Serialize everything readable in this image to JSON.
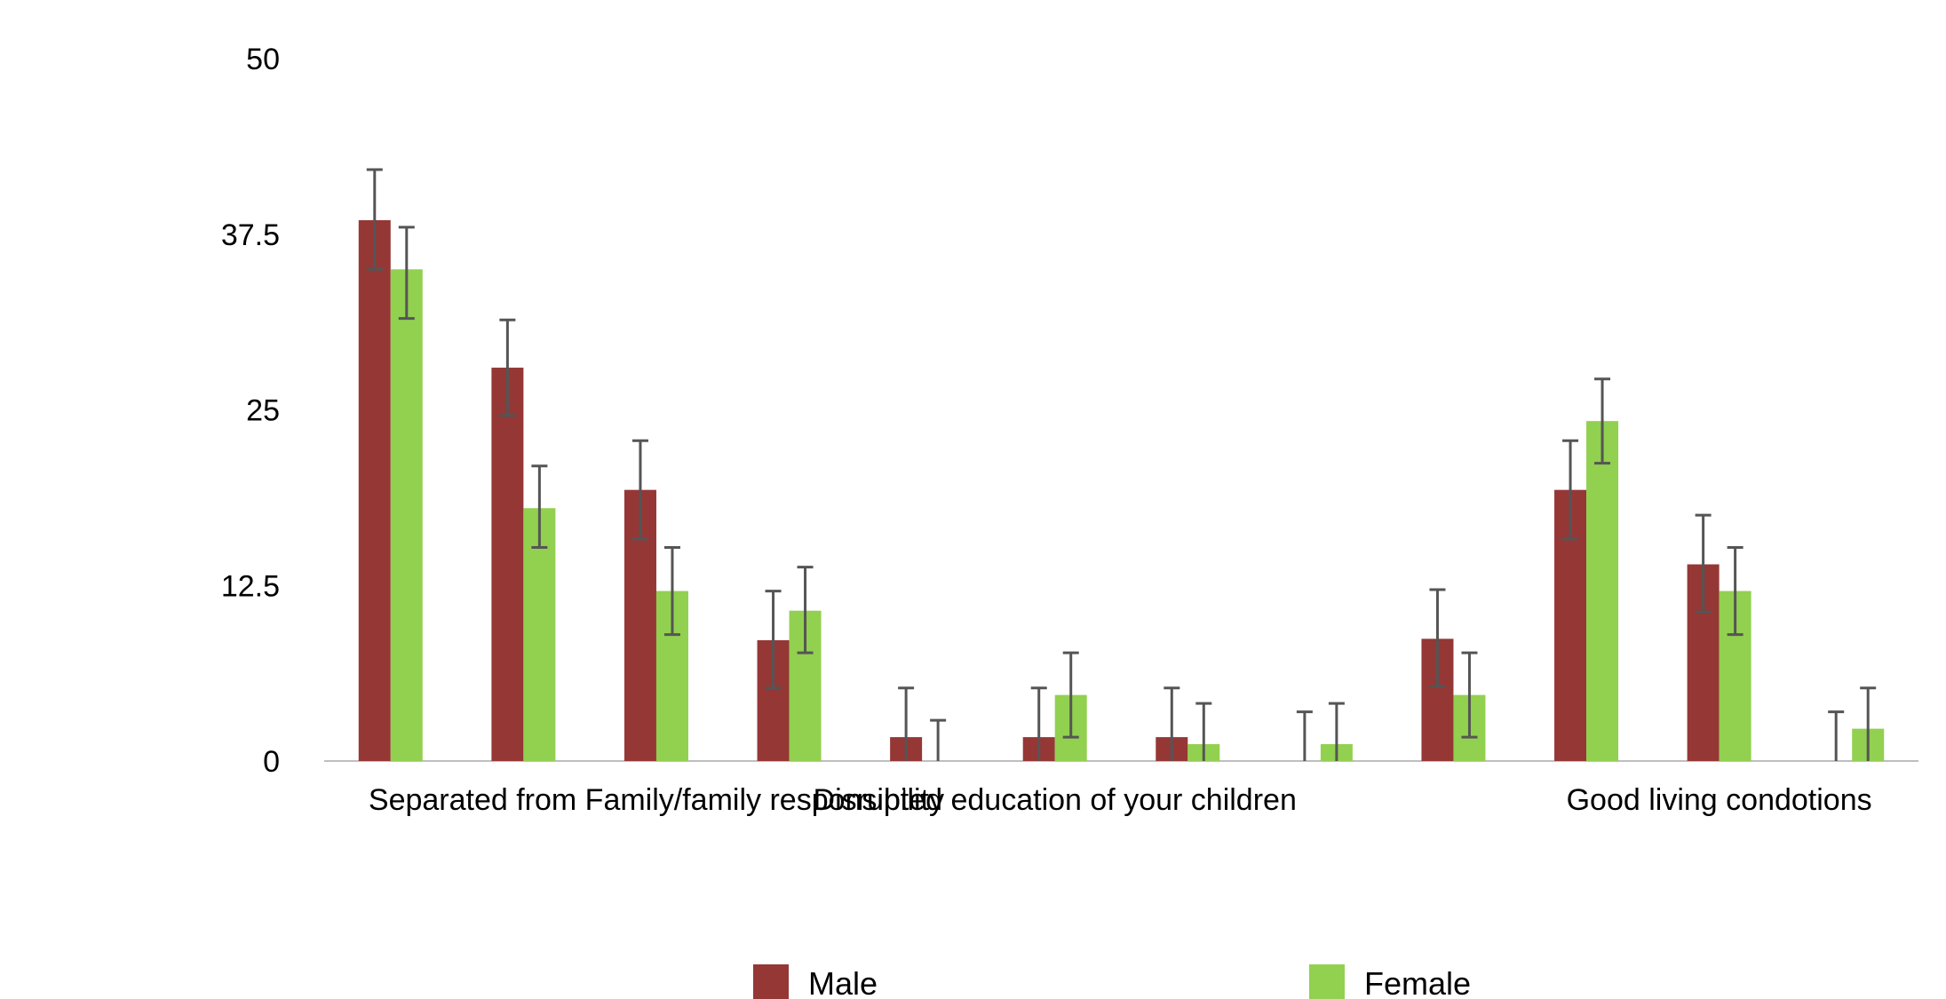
{
  "chart_data": {
    "type": "bar",
    "title": "",
    "xlabel": "",
    "ylabel": "",
    "ylim": [
      0,
      50
    ],
    "yticks": [
      0,
      12.5,
      25,
      37.5,
      50
    ],
    "ytick_labels": [
      "0",
      "12.5",
      "25",
      "37.5",
      "50"
    ],
    "grid": false,
    "legend_position": "bottom",
    "categories": [
      "",
      "",
      "",
      "",
      "",
      "",
      "",
      "",
      "",
      "",
      "",
      ""
    ],
    "printed_category_labels": [
      {
        "index": 2,
        "text": "Separated from Family/family responsibility"
      },
      {
        "index": 5,
        "text": "Disrupted education of your children"
      },
      {
        "index": 10,
        "text": "Good living condotions"
      }
    ],
    "series": [
      {
        "name": "Male",
        "color": "#953735",
        "values": [
          38.5,
          28,
          19.3,
          8.6,
          1.7,
          1.7,
          1.7,
          0,
          8.7,
          19.3,
          14,
          0
        ],
        "err_low": [
          35.0,
          24.6,
          15.8,
          5.2,
          0,
          0,
          0,
          0,
          5.3,
          15.8,
          10.6,
          0
        ],
        "err_high": [
          42.1,
          31.4,
          22.8,
          12.1,
          5.2,
          5.2,
          5.2,
          3.5,
          12.2,
          22.8,
          17.5,
          3.5
        ]
      },
      {
        "name": "Female",
        "color": "#92d050",
        "values": [
          35,
          18,
          12.1,
          10.7,
          0,
          4.7,
          1.2,
          1.2,
          4.7,
          24.2,
          12.1,
          2.3
        ],
        "err_low": [
          31.5,
          15.2,
          9.0,
          7.7,
          0,
          1.7,
          0,
          0,
          1.7,
          21.2,
          9.0,
          0
        ],
        "err_high": [
          38.0,
          21.0,
          15.2,
          13.8,
          2.9,
          7.7,
          4.1,
          4.1,
          7.7,
          27.2,
          15.2,
          5.2
        ]
      }
    ]
  }
}
